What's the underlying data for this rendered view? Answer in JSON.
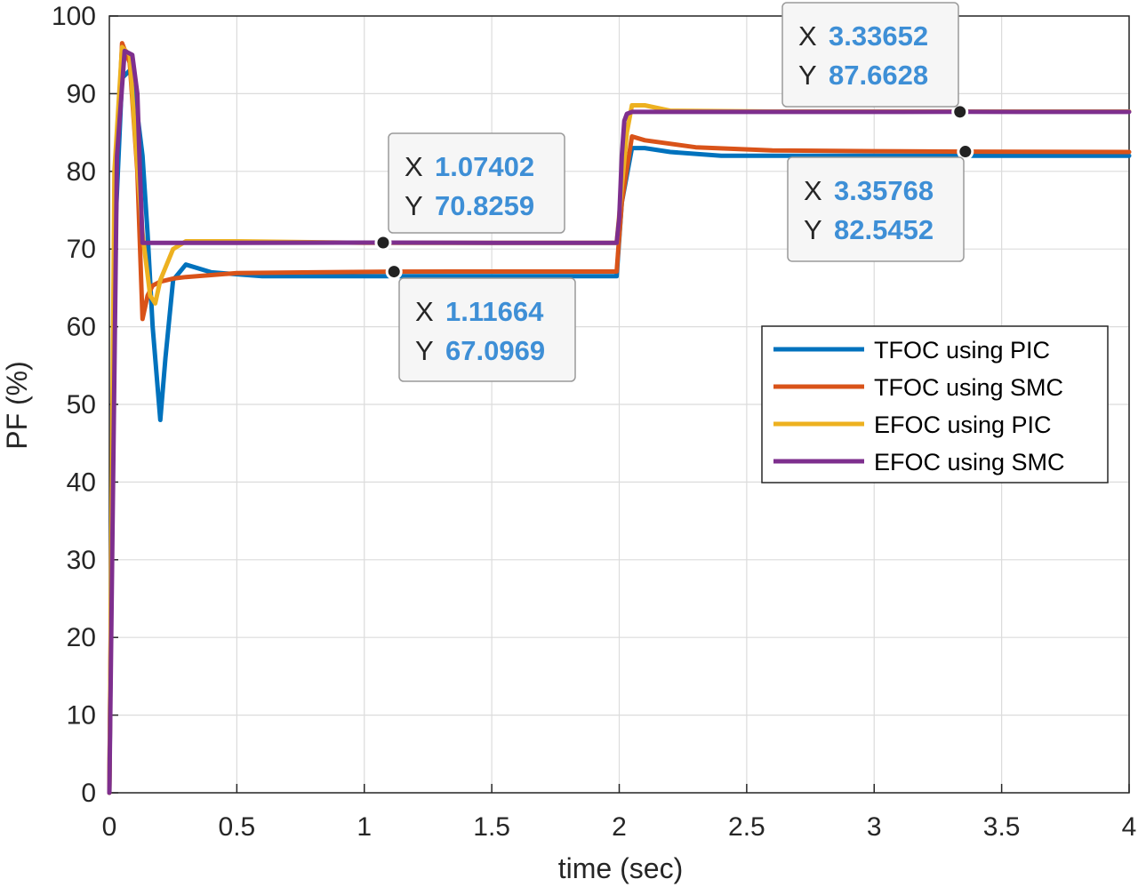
{
  "chart_data": {
    "type": "line",
    "title": "",
    "xlabel": "time (sec)",
    "ylabel": "PF (%)",
    "xlim": [
      0,
      4
    ],
    "ylim": [
      0,
      100
    ],
    "xticks": [
      0,
      0.5,
      1,
      1.5,
      2,
      2.5,
      3,
      3.5,
      4
    ],
    "xtick_labels": [
      "0",
      "0.5",
      "1",
      "1.5",
      "2",
      "2.5",
      "3",
      "3.5",
      "4"
    ],
    "yticks": [
      0,
      10,
      20,
      30,
      40,
      50,
      60,
      70,
      80,
      90,
      100
    ],
    "ytick_labels": [
      "0",
      "10",
      "20",
      "30",
      "40",
      "50",
      "60",
      "70",
      "80",
      "90",
      "100"
    ],
    "grid": true,
    "legend_position": "right",
    "series": [
      {
        "name": "TFOC using PIC",
        "color": "#0072bd",
        "x": [
          0,
          0.02,
          0.05,
          0.08,
          0.1,
          0.13,
          0.15,
          0.17,
          0.2,
          0.22,
          0.25,
          0.3,
          0.4,
          0.6,
          0.8,
          1.0,
          1.2,
          1.5,
          1.8,
          1.99,
          2.01,
          2.05,
          2.1,
          2.2,
          2.4,
          2.6,
          3.0,
          3.5,
          4.0
        ],
        "y": [
          0,
          70,
          92,
          93,
          90,
          82,
          72,
          60,
          48,
          56,
          66,
          68,
          67,
          66.5,
          66.5,
          66.5,
          66.5,
          66.5,
          66.5,
          66.5,
          76,
          83,
          83,
          82.5,
          82,
          82,
          82,
          82,
          82
        ]
      },
      {
        "name": "TFOC using SMC",
        "color": "#d95319",
        "x": [
          0,
          0.02,
          0.05,
          0.08,
          0.11,
          0.13,
          0.15,
          0.17,
          0.2,
          0.25,
          0.3,
          0.5,
          0.8,
          1.11664,
          1.5,
          1.99,
          2.01,
          2.05,
          2.1,
          2.3,
          2.6,
          3.0,
          3.35768,
          4.0
        ],
        "y": [
          0,
          75,
          96.5,
          94,
          80,
          61,
          64,
          65.3,
          65.8,
          66.2,
          66.4,
          66.9,
          67.0,
          67.0969,
          67.1,
          67.1,
          76,
          84.5,
          84,
          83.1,
          82.7,
          82.6,
          82.5452,
          82.5
        ]
      },
      {
        "name": "EFOC using PIC",
        "color": "#edb120",
        "x": [
          0,
          0.02,
          0.05,
          0.08,
          0.1,
          0.13,
          0.16,
          0.18,
          0.2,
          0.25,
          0.3,
          0.5,
          1.0,
          1.5,
          1.99,
          2.01,
          2.03,
          2.05,
          2.1,
          2.2,
          2.6,
          3.0,
          3.5,
          4.0
        ],
        "y": [
          0,
          80,
          96,
          95,
          85,
          72,
          64,
          63,
          66,
          70,
          71,
          71,
          70.8,
          70.8,
          70.8,
          78,
          85,
          88.5,
          88.5,
          87.8,
          87.7,
          87.7,
          87.7,
          87.7
        ]
      },
      {
        "name": "EFOC using SMC",
        "color": "#7e2f8e",
        "x": [
          0,
          0.03,
          0.06,
          0.09,
          0.11,
          0.12,
          0.13,
          0.2,
          0.5,
          1.07402,
          1.5,
          1.99,
          2.0,
          2.01,
          2.02,
          2.03,
          2.05,
          2.5,
          3.0,
          3.33652,
          4.0
        ],
        "y": [
          0,
          82,
          95.5,
          95,
          90,
          80,
          70.8,
          70.8,
          70.8,
          70.8259,
          70.8,
          70.8,
          74,
          82,
          86.5,
          87.4,
          87.66,
          87.66,
          87.66,
          87.6628,
          87.66
        ]
      }
    ],
    "datatips": [
      {
        "x_label": "X",
        "x_value": "1.07402",
        "y_label": "Y",
        "y_value": "70.8259",
        "x": 1.07402,
        "y": 70.8259
      },
      {
        "x_label": "X",
        "x_value": "1.11664",
        "y_label": "Y",
        "y_value": "67.0969",
        "x": 1.11664,
        "y": 67.0969
      },
      {
        "x_label": "X",
        "x_value": "3.33652",
        "y_label": "Y",
        "y_value": "87.6628",
        "x": 3.33652,
        "y": 87.6628
      },
      {
        "x_label": "X",
        "x_value": "3.35768",
        "y_label": "Y",
        "y_value": "82.5452",
        "x": 3.35768,
        "y": 82.5452
      }
    ]
  }
}
